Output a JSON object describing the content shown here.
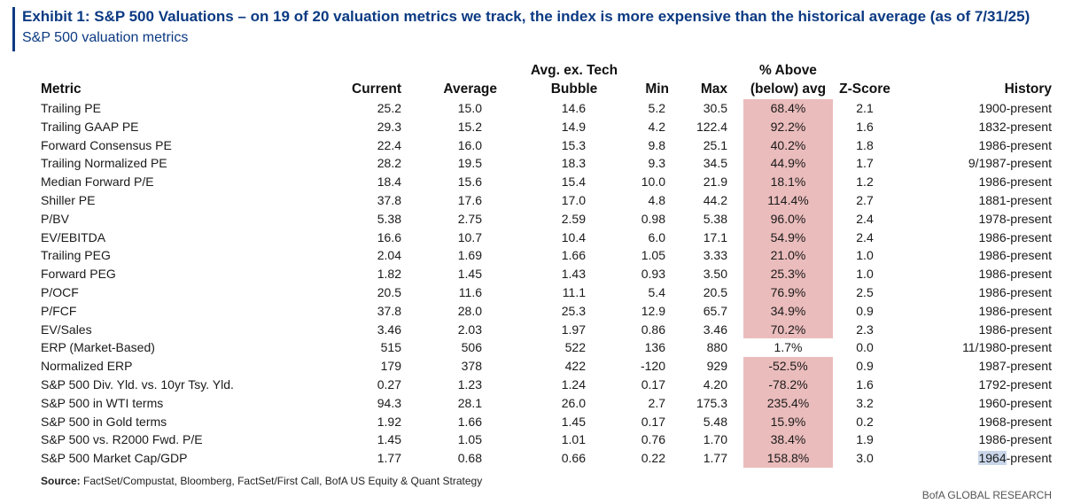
{
  "title": "Exhibit 1: S&P 500 Valuations – on 19 of 20 valuation metrics we track, the index is more expensive than the historical average (as of 7/31/25)",
  "subtitle": "S&P 500 valuation metrics",
  "headers": {
    "metric": "Metric",
    "current": "Current",
    "average": "Average",
    "bubble_line1": "Avg. ex. Tech",
    "bubble_line2": "Bubble",
    "min": "Min",
    "max": "Max",
    "pct_line1": "% Above",
    "pct_line2": "(below) avg",
    "zscore": "Z-Score",
    "history": "History"
  },
  "highlight_color": "#ebbcbc",
  "rows": [
    {
      "metric": "Trailing PE",
      "current": "25.2",
      "average": "15.0",
      "bubble": "14.6",
      "min": "5.2",
      "max": "30.5",
      "pct": "68.4%",
      "z": "2.1",
      "history": "1900-present",
      "highlight": true
    },
    {
      "metric": "Trailing GAAP PE",
      "current": "29.3",
      "average": "15.2",
      "bubble": "14.9",
      "min": "4.2",
      "max": "122.4",
      "pct": "92.2%",
      "z": "1.6",
      "history": "1832-present",
      "highlight": true
    },
    {
      "metric": "Forward Consensus PE",
      "current": "22.4",
      "average": "16.0",
      "bubble": "15.3",
      "min": "9.8",
      "max": "25.1",
      "pct": "40.2%",
      "z": "1.8",
      "history": "1986-present",
      "highlight": true
    },
    {
      "metric": "Trailing Normalized PE",
      "current": "28.2",
      "average": "19.5",
      "bubble": "18.3",
      "min": "9.3",
      "max": "34.5",
      "pct": "44.9%",
      "z": "1.7",
      "history": "9/1987-present",
      "highlight": true
    },
    {
      "metric": "Median Forward P/E",
      "current": "18.4",
      "average": "15.6",
      "bubble": "15.4",
      "min": "10.0",
      "max": "21.9",
      "pct": "18.1%",
      "z": "1.2",
      "history": "1986-present",
      "highlight": true
    },
    {
      "metric": "Shiller PE",
      "current": "37.8",
      "average": "17.6",
      "bubble": "17.0",
      "min": "4.8",
      "max": "44.2",
      "pct": "114.4%",
      "z": "2.7",
      "history": "1881-present",
      "highlight": true
    },
    {
      "metric": "P/BV",
      "current": "5.38",
      "average": "2.75",
      "bubble": "2.59",
      "min": "0.98",
      "max": "5.38",
      "pct": "96.0%",
      "z": "2.4",
      "history": "1978-present",
      "highlight": true
    },
    {
      "metric": "EV/EBITDA",
      "current": "16.6",
      "average": "10.7",
      "bubble": "10.4",
      "min": "6.0",
      "max": "17.1",
      "pct": "54.9%",
      "z": "2.4",
      "history": "1986-present",
      "highlight": true
    },
    {
      "metric": "Trailing PEG",
      "current": "2.04",
      "average": "1.69",
      "bubble": "1.66",
      "min": "1.05",
      "max": "3.33",
      "pct": "21.0%",
      "z": "1.0",
      "history": "1986-present",
      "highlight": true
    },
    {
      "metric": "Forward PEG",
      "current": "1.82",
      "average": "1.45",
      "bubble": "1.43",
      "min": "0.93",
      "max": "3.50",
      "pct": "25.3%",
      "z": "1.0",
      "history": "1986-present",
      "highlight": true
    },
    {
      "metric": "P/OCF",
      "current": "20.5",
      "average": "11.6",
      "bubble": "11.1",
      "min": "5.4",
      "max": "20.5",
      "pct": "76.9%",
      "z": "2.5",
      "history": "1986-present",
      "highlight": true
    },
    {
      "metric": "P/FCF",
      "current": "37.8",
      "average": "28.0",
      "bubble": "25.3",
      "min": "12.9",
      "max": "65.7",
      "pct": "34.9%",
      "z": "0.9",
      "history": "1986-present",
      "highlight": true
    },
    {
      "metric": "EV/Sales",
      "current": "3.46",
      "average": "2.03",
      "bubble": "1.97",
      "min": "0.86",
      "max": "3.46",
      "pct": "70.2%",
      "z": "2.3",
      "history": "1986-present",
      "highlight": true
    },
    {
      "metric": "ERP (Market-Based)",
      "current": "515",
      "average": "506",
      "bubble": "522",
      "min": "136",
      "max": "880",
      "pct": "1.7%",
      "z": "0.0",
      "history": "11/1980-present",
      "highlight": false
    },
    {
      "metric": "Normalized ERP",
      "current": "179",
      "average": "378",
      "bubble": "422",
      "min": "-120",
      "max": "929",
      "pct": "-52.5%",
      "z": "0.9",
      "history": "1987-present",
      "highlight": true
    },
    {
      "metric": "S&P 500 Div. Yld. vs. 10yr Tsy. Yld.",
      "current": "0.27",
      "average": "1.23",
      "bubble": "1.24",
      "min": "0.17",
      "max": "4.20",
      "pct": "-78.2%",
      "z": "1.6",
      "history": "1792-present",
      "highlight": true
    },
    {
      "metric": "S&P 500 in WTI terms",
      "current": "94.3",
      "average": "28.1",
      "bubble": "26.0",
      "min": "2.7",
      "max": "175.3",
      "pct": "235.4%",
      "z": "3.2",
      "history": "1960-present",
      "highlight": true
    },
    {
      "metric": "S&P 500 in Gold terms",
      "current": "1.92",
      "average": "1.66",
      "bubble": "1.45",
      "min": "0.17",
      "max": "5.48",
      "pct": "15.9%",
      "z": "0.2",
      "history": "1968-present",
      "highlight": true
    },
    {
      "metric": "S&P 500 vs. R2000 Fwd. P/E",
      "current": "1.45",
      "average": "1.05",
      "bubble": "1.01",
      "min": "0.76",
      "max": "1.70",
      "pct": "38.4%",
      "z": "1.9",
      "history": "1986-present",
      "highlight": true
    },
    {
      "metric": "S&P 500 Market Cap/GDP",
      "current": "1.77",
      "average": "0.68",
      "bubble": "0.66",
      "min": "0.22",
      "max": "1.77",
      "pct": "158.8%",
      "z": "3.0",
      "history_highlighted": "1964",
      "history": "-present",
      "highlight": true
    }
  ],
  "source_label": "Source:",
  "source_text": " FactSet/Compustat, Bloomberg, FactSet/First Call, BofA US Equity & Quant Strategy",
  "footer": "BofA GLOBAL RESEARCH"
}
